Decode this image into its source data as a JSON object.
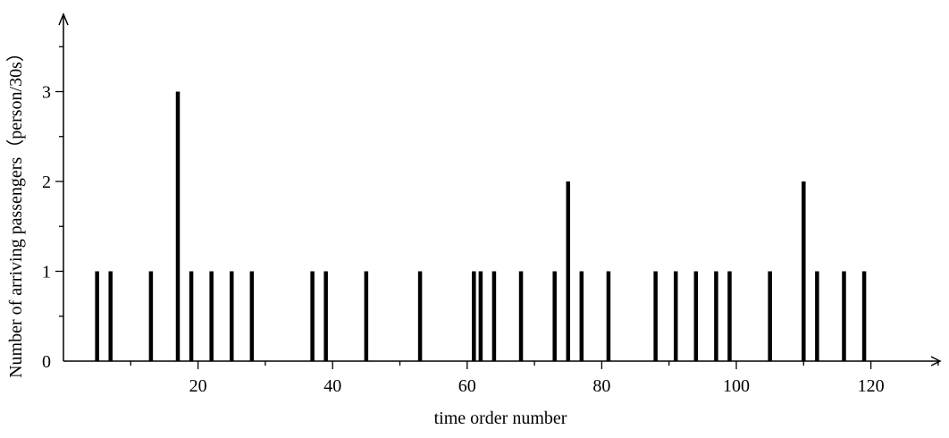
{
  "chart_data": {
    "type": "bar",
    "xlabel": "time order number",
    "ylabel": "Number of arriving passengers（person/30s）",
    "xlim": [
      0,
      130
    ],
    "ylim": [
      0,
      3.8
    ],
    "x_ticks": [
      20,
      40,
      60,
      80,
      100,
      120
    ],
    "y_ticks": [
      0,
      1,
      2,
      3
    ],
    "grid": false,
    "bar_color": "#000000",
    "points": [
      {
        "x": 5,
        "y": 1
      },
      {
        "x": 7,
        "y": 1
      },
      {
        "x": 13,
        "y": 1
      },
      {
        "x": 17,
        "y": 3
      },
      {
        "x": 19,
        "y": 1
      },
      {
        "x": 22,
        "y": 1
      },
      {
        "x": 25,
        "y": 1
      },
      {
        "x": 28,
        "y": 1
      },
      {
        "x": 37,
        "y": 1
      },
      {
        "x": 39,
        "y": 1
      },
      {
        "x": 45,
        "y": 1
      },
      {
        "x": 53,
        "y": 1
      },
      {
        "x": 61,
        "y": 1
      },
      {
        "x": 62,
        "y": 1
      },
      {
        "x": 64,
        "y": 1
      },
      {
        "x": 68,
        "y": 1
      },
      {
        "x": 73,
        "y": 1
      },
      {
        "x": 75,
        "y": 2
      },
      {
        "x": 77,
        "y": 1
      },
      {
        "x": 81,
        "y": 1
      },
      {
        "x": 88,
        "y": 1
      },
      {
        "x": 91,
        "y": 1
      },
      {
        "x": 94,
        "y": 1
      },
      {
        "x": 97,
        "y": 1
      },
      {
        "x": 99,
        "y": 1
      },
      {
        "x": 105,
        "y": 1
      },
      {
        "x": 110,
        "y": 2
      },
      {
        "x": 112,
        "y": 1
      },
      {
        "x": 116,
        "y": 1
      },
      {
        "x": 119,
        "y": 1
      }
    ]
  }
}
